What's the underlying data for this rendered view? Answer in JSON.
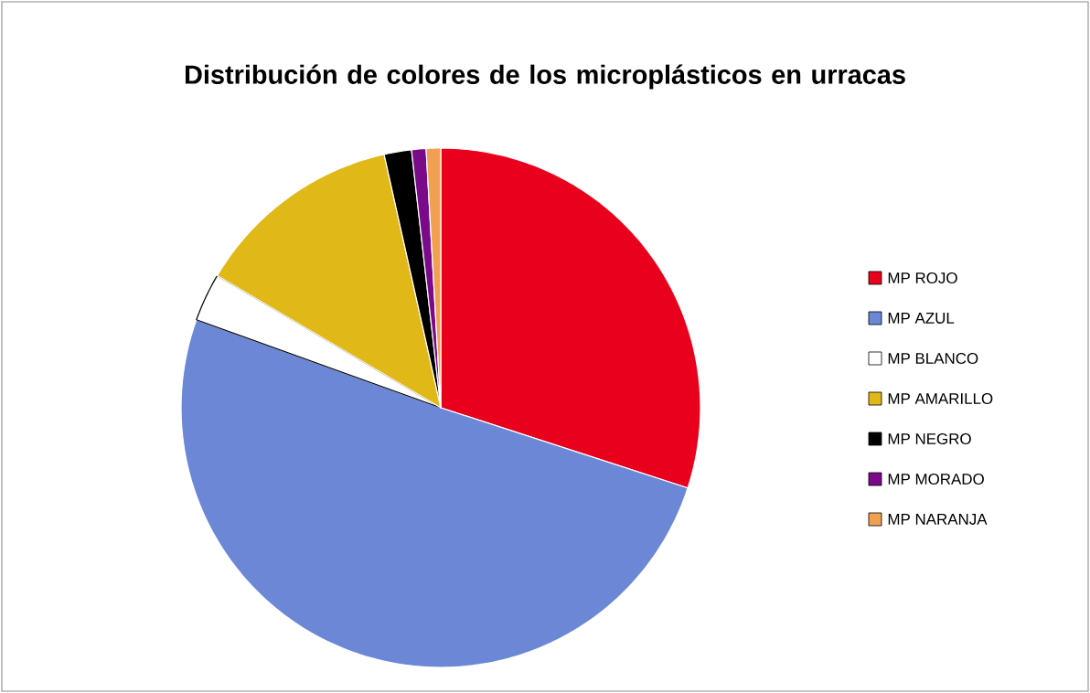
{
  "chart_data": {
    "type": "pie",
    "title": "Distribución de colores de los microplásticos en urracas",
    "categories": [
      "MP ROJO",
      "MP AZUL",
      "MP BLANCO",
      "MP AMARILLO",
      "MP NEGRO",
      "MP MORADO",
      "MP NARANJA"
    ],
    "values": [
      30,
      50.5,
      3,
      13,
      1.7,
      0.9,
      0.9
    ],
    "colors": [
      "#e8001c",
      "#6b87d6",
      "#ffffff",
      "#e0b818",
      "#000000",
      "#7a0a8a",
      "#f0a050"
    ],
    "legend": "right"
  }
}
